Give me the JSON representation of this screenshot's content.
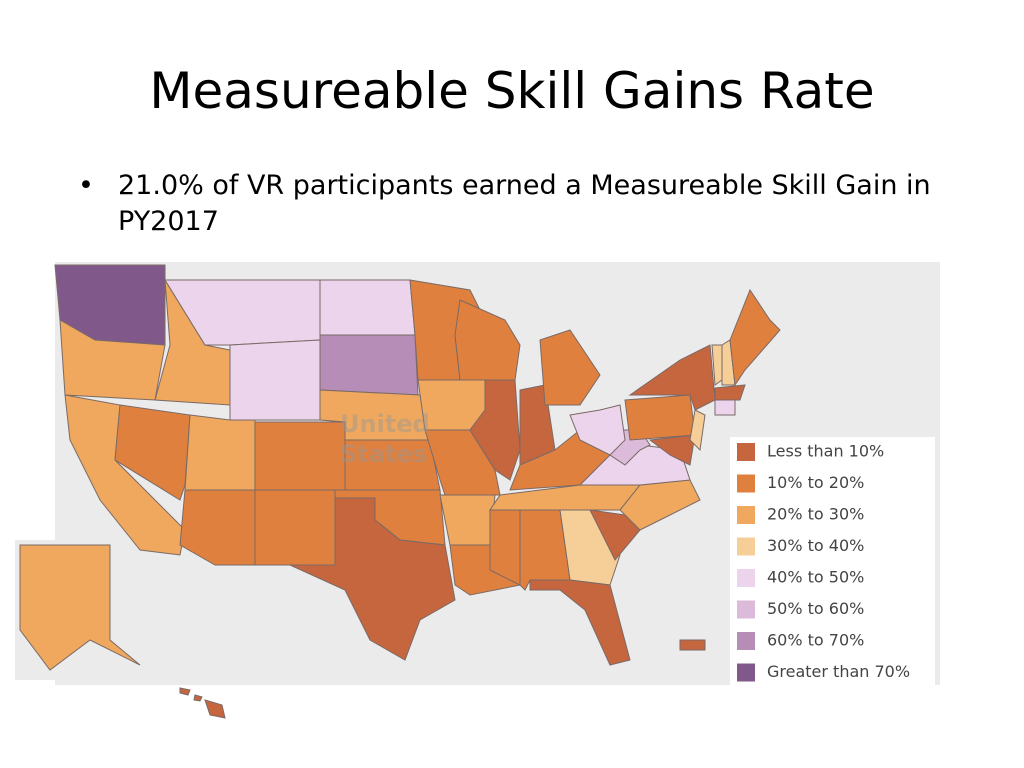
{
  "title": "Measureable Skill Gains Rate",
  "bullets": [
    "21.0% of VR participants earned a Measureable Skill Gain in PY2017"
  ],
  "map": {
    "label": [
      "United",
      "States"
    ],
    "legend": [
      {
        "label": "Less than 10%",
        "color": "#c6663f"
      },
      {
        "label": "10% to 20%",
        "color": "#e0803f"
      },
      {
        "label": "20% to 30%",
        "color": "#efa85d"
      },
      {
        "label": "30% to 40%",
        "color": "#f6cf98"
      },
      {
        "label": "40% to 50%",
        "color": "#ecd4ec"
      },
      {
        "label": "50% to 60%",
        "color": "#dcbad9"
      },
      {
        "label": "60% to 70%",
        "color": "#b68db7"
      },
      {
        "label": "Greater than 70%",
        "color": "#80598a"
      }
    ]
  }
}
